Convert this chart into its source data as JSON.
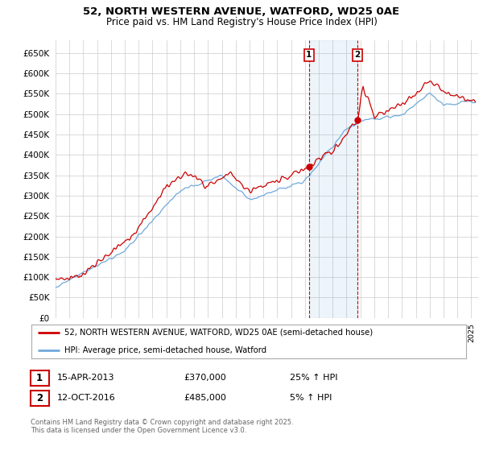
{
  "title": "52, NORTH WESTERN AVENUE, WATFORD, WD25 0AE",
  "subtitle": "Price paid vs. HM Land Registry's House Price Index (HPI)",
  "legend_line1": "52, NORTH WESTERN AVENUE, WATFORD, WD25 0AE (semi-detached house)",
  "legend_line2": "HPI: Average price, semi-detached house, Watford",
  "footnote": "Contains HM Land Registry data © Crown copyright and database right 2025.\nThis data is licensed under the Open Government Licence v3.0.",
  "sale1_date": "15-APR-2013",
  "sale1_price": "£370,000",
  "sale1_hpi": "25% ↑ HPI",
  "sale1_year": 2013.29,
  "sale1_price_val": 370000,
  "sale2_date": "12-OCT-2016",
  "sale2_price": "£485,000",
  "sale2_hpi": "5% ↑ HPI",
  "sale2_year": 2016.79,
  "sale2_price_val": 485000,
  "hpi_color": "#6fa8dc",
  "price_color": "#cc0000",
  "background_color": "#ffffff",
  "grid_color": "#cccccc",
  "ylim": [
    0,
    680000
  ],
  "yticks": [
    0,
    50000,
    100000,
    150000,
    200000,
    250000,
    300000,
    350000,
    400000,
    450000,
    500000,
    550000,
    600000,
    650000
  ],
  "xlim_start": 1995.0,
  "xlim_end": 2025.5
}
